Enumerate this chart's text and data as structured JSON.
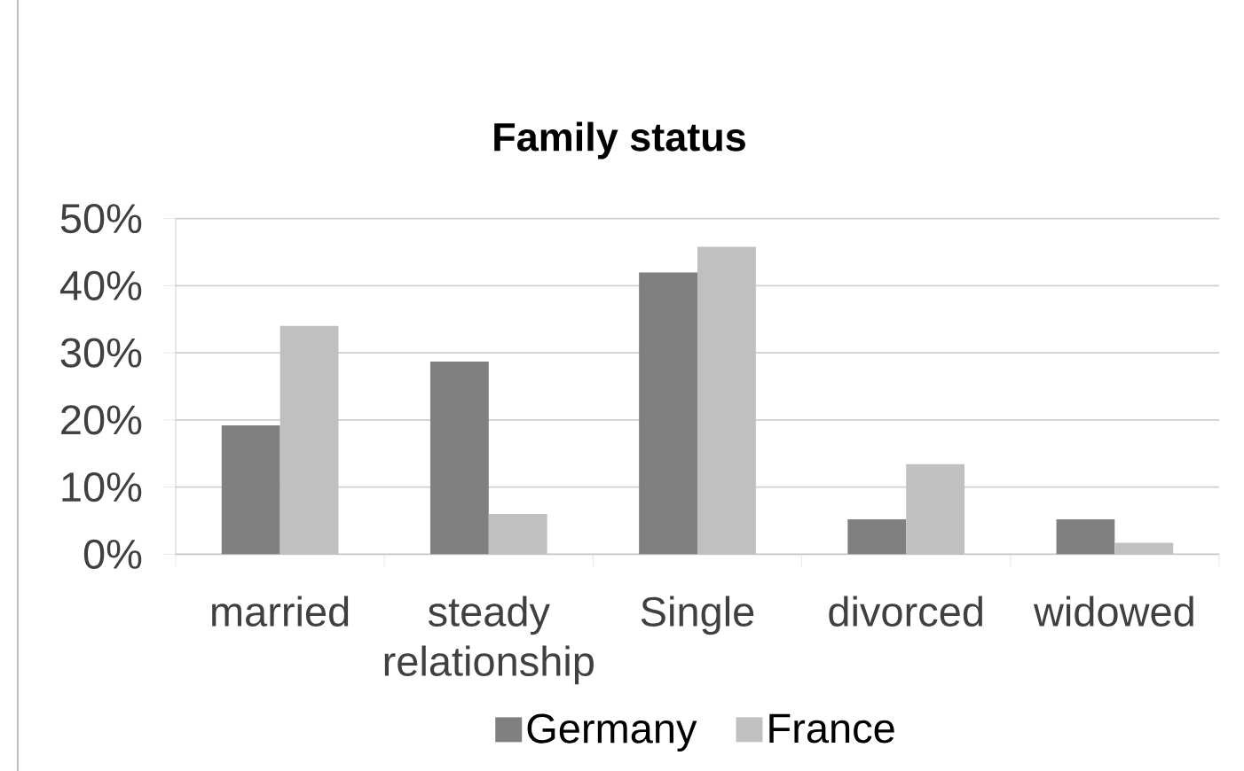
{
  "chart_data": {
    "type": "bar",
    "title": "Family status",
    "categories": [
      "married",
      "steady relationship",
      "Single",
      "divorced",
      "widowed"
    ],
    "series": [
      {
        "name": "Germany",
        "color": "#808080",
        "values": [
          19.2,
          28.7,
          42,
          5.2,
          5.2
        ]
      },
      {
        "name": "France",
        "color": "#c0c0c0",
        "values": [
          34,
          6,
          45.8,
          13.4,
          1.7
        ]
      }
    ],
    "ylim": [
      0,
      50
    ],
    "yticks": [
      {
        "value": 0,
        "label": "0%"
      },
      {
        "value": 10,
        "label": "10%"
      },
      {
        "value": 20,
        "label": "20%"
      },
      {
        "value": 30,
        "label": "30%"
      },
      {
        "value": 40,
        "label": "40%"
      },
      {
        "value": 50,
        "label": "50%"
      }
    ],
    "grid": "y",
    "legend": "bottom"
  }
}
